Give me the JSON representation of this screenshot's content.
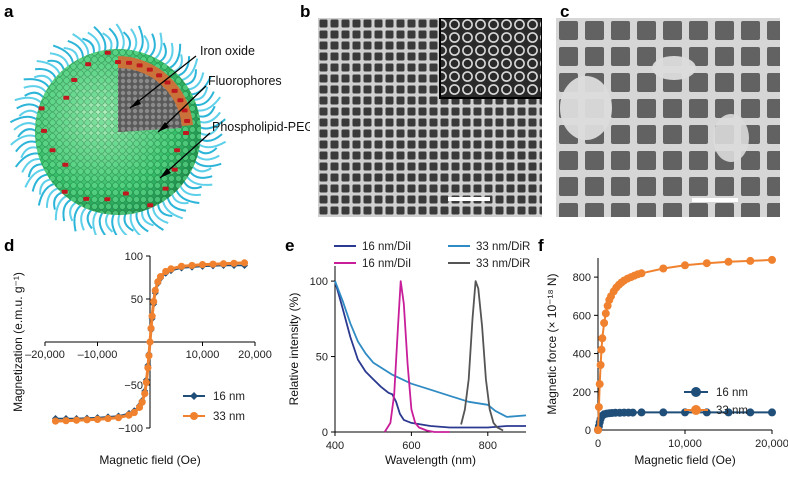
{
  "panels": {
    "a": {
      "label": "a",
      "annotations": [
        "Iron oxide",
        "Fluorophores",
        "Phospholipid-PEG"
      ]
    },
    "b": {
      "label": "b"
    },
    "c": {
      "label": "c"
    },
    "d": {
      "label": "d"
    },
    "e": {
      "label": "e"
    },
    "f": {
      "label": "f"
    }
  },
  "colors": {
    "navy": "#2b3990",
    "blue": "#1f4e79",
    "orange": "#f0822f",
    "magenta": "#c81e9a",
    "skyblue": "#2f8bc3",
    "gray": "#555555"
  },
  "chart_data": [
    {
      "id": "d",
      "type": "line",
      "title": "",
      "xlabel": "Magnetic field (Oe)",
      "ylabel": "Magnetization (e.m.u. g⁻¹)",
      "xlim": [
        -20000,
        20000
      ],
      "ylim": [
        -100,
        100
      ],
      "xticks": [
        -20000,
        -10000,
        0,
        10000,
        20000
      ],
      "xtick_labels": [
        "–20,000",
        "–10,000",
        "0",
        "10,000",
        "20,000"
      ],
      "yticks": [
        -100,
        -50,
        0,
        50,
        100
      ],
      "ytick_labels": [
        "−100",
        "−50",
        "0",
        "50",
        "100"
      ],
      "legend": "bottom-right",
      "series": [
        {
          "name": "16 nm",
          "color": "#1f4e79",
          "marker": "diamond",
          "x": [
            -18000,
            -16000,
            -14000,
            -12000,
            -10000,
            -8000,
            -6000,
            -4000,
            -3000,
            -2000,
            -1500,
            -1000,
            -700,
            -400,
            -200,
            0,
            200,
            400,
            700,
            1000,
            1500,
            2000,
            3000,
            4000,
            6000,
            8000,
            10000,
            12000,
            14000,
            16000,
            18000
          ],
          "y": [
            -89,
            -89,
            -89,
            -88.5,
            -88,
            -87,
            -86,
            -83,
            -80,
            -74,
            -68,
            -57,
            -44,
            -27,
            -14,
            0,
            14,
            27,
            44,
            57,
            68,
            74,
            80,
            83,
            86,
            87,
            88,
            88.5,
            89,
            89,
            89
          ]
        },
        {
          "name": "33 nm",
          "color": "#f0822f",
          "marker": "circle",
          "x": [
            -18000,
            -16000,
            -14000,
            -12000,
            -10000,
            -8000,
            -6000,
            -4000,
            -3000,
            -2000,
            -1500,
            -1000,
            -700,
            -400,
            -200,
            0,
            200,
            400,
            700,
            1000,
            1500,
            2000,
            3000,
            4000,
            6000,
            8000,
            10000,
            12000,
            14000,
            16000,
            18000
          ],
          "y": [
            -92,
            -91.5,
            -91,
            -90.5,
            -90,
            -89,
            -88,
            -85,
            -82,
            -76,
            -70,
            -60,
            -47,
            -30,
            -16,
            0,
            16,
            30,
            47,
            60,
            70,
            76,
            82,
            85,
            88,
            89,
            90,
            90.5,
            91,
            91.5,
            92
          ]
        }
      ]
    },
    {
      "id": "e",
      "type": "line",
      "title": "",
      "xlabel": "Wavelength (nm)",
      "ylabel": "Relative intensity (%)",
      "xlim": [
        400,
        900
      ],
      "ylim": [
        0,
        110
      ],
      "xticks": [
        400,
        600,
        800
      ],
      "xtick_labels": [
        "400",
        "600",
        "800"
      ],
      "yticks": [
        0,
        50,
        100
      ],
      "ytick_labels": [
        "0",
        "50",
        "100"
      ],
      "legend": "top",
      "series": [
        {
          "name": "16 nm/DiI",
          "color": "#2b3990",
          "x": [
            400,
            420,
            440,
            460,
            480,
            500,
            520,
            540,
            550,
            560,
            570,
            580,
            600,
            650,
            700,
            750,
            800,
            850,
            900
          ],
          "y": [
            100,
            82,
            63,
            48,
            40,
            35,
            30,
            26,
            25,
            20,
            12,
            8,
            6,
            4,
            3,
            3,
            3,
            4,
            4
          ]
        },
        {
          "name": "33 nm/DiR",
          "color": "#2f8bc3",
          "x": [
            400,
            420,
            440,
            460,
            480,
            500,
            550,
            600,
            650,
            700,
            750,
            800,
            820,
            850,
            900
          ],
          "y": [
            100,
            87,
            72,
            60,
            52,
            46,
            38,
            32,
            28,
            24,
            20,
            18,
            14,
            10,
            11
          ]
        },
        {
          "name": "16 nm/DiI",
          "color": "#c81e9a",
          "x": [
            530,
            545,
            555,
            565,
            572,
            580,
            590,
            600,
            610,
            620,
            640,
            660,
            700
          ],
          "y": [
            0,
            6,
            25,
            70,
            100,
            85,
            45,
            15,
            6,
            3,
            1,
            0,
            0
          ]
        },
        {
          "name": "33 nm/DiR",
          "color": "#555555",
          "x": [
            730,
            740,
            750,
            760,
            768,
            775,
            785,
            795,
            805,
            815,
            825,
            840
          ],
          "y": [
            5,
            15,
            35,
            75,
            100,
            95,
            70,
            35,
            15,
            6,
            3,
            1
          ]
        }
      ]
    },
    {
      "id": "f",
      "type": "line",
      "title": "",
      "xlabel": "Magnetic field (Oe)",
      "ylabel": "Magnetic force (× 10⁻¹⁸ N)",
      "xlim": [
        0,
        20000
      ],
      "ylim": [
        0,
        900
      ],
      "xticks": [
        0,
        10000,
        20000
      ],
      "xtick_labels": [
        "0",
        "10,000",
        "20,000"
      ],
      "yticks": [
        0,
        200,
        400,
        600,
        800
      ],
      "ytick_labels": [
        "0",
        "200",
        "400",
        "600",
        "800"
      ],
      "legend": "right",
      "series": [
        {
          "name": "16 nm",
          "color": "#1f4e79",
          "x": [
            0,
            100,
            200,
            300,
            500,
            700,
            1000,
            1300,
            1600,
            2000,
            2500,
            3000,
            3500,
            4000,
            5000,
            7500,
            10000,
            12500,
            15000,
            17500,
            20000
          ],
          "y": [
            0,
            20,
            40,
            58,
            75,
            82,
            86,
            88,
            89,
            90,
            90,
            91,
            91,
            91,
            92,
            92,
            92,
            92,
            92,
            92,
            92
          ]
        },
        {
          "name": "33 nm",
          "color": "#f0822f",
          "x": [
            0,
            100,
            200,
            300,
            400,
            500,
            700,
            900,
            1100,
            1300,
            1500,
            1800,
            2100,
            2400,
            2700,
            3000,
            3400,
            3800,
            4200,
            4600,
            5000,
            7500,
            10000,
            12500,
            15000,
            17500,
            20000
          ],
          "y": [
            0,
            120,
            240,
            340,
            420,
            480,
            560,
            610,
            650,
            680,
            700,
            725,
            745,
            760,
            772,
            782,
            792,
            800,
            808,
            815,
            820,
            845,
            862,
            873,
            880,
            885,
            890
          ]
        }
      ]
    }
  ]
}
